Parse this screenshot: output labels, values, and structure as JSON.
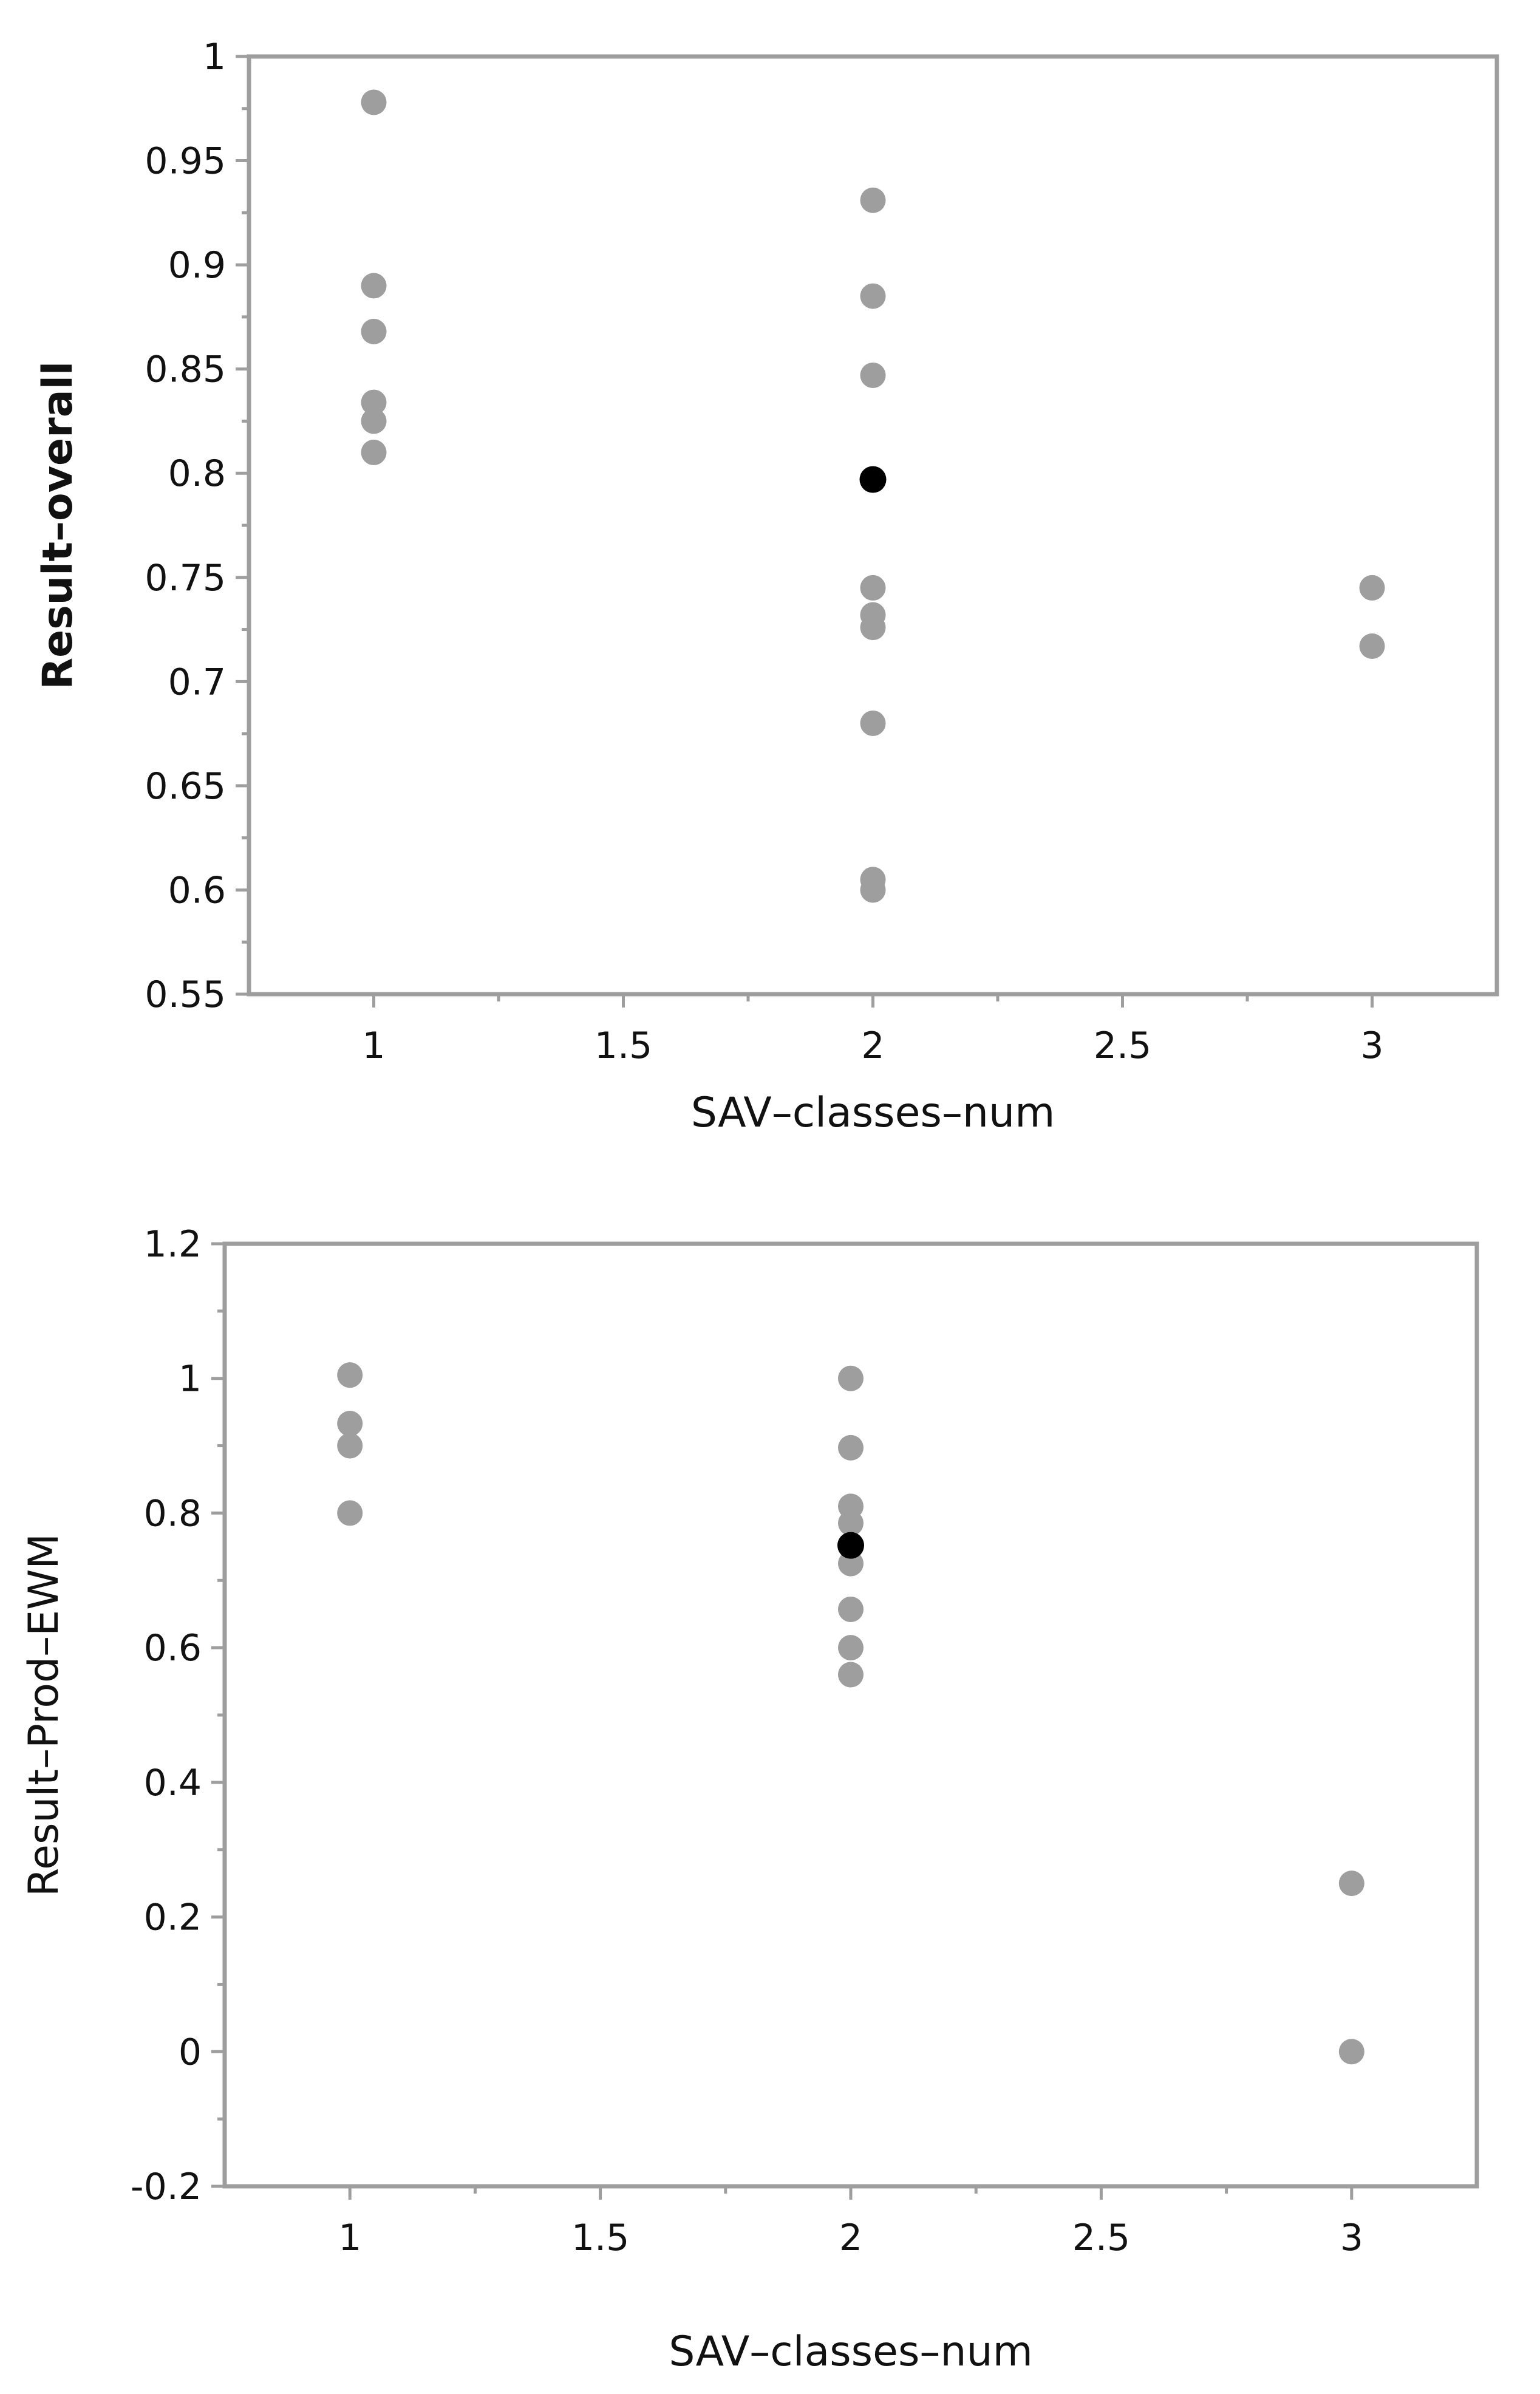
{
  "colors": {
    "frame": "#9e9e9e",
    "point": "#9e9e9e",
    "highlight": "#000000",
    "text": "#111111"
  },
  "chart_data": [
    {
      "type": "scatter",
      "xlabel": "SAV–classes–num",
      "ylabel": "Result–overall",
      "ylabel_bold": true,
      "xlim": [
        0.75,
        3.25
      ],
      "ylim": [
        0.55,
        1.0
      ],
      "xticks": [
        1,
        1.5,
        2,
        2.5,
        3
      ],
      "xtick_labels": [
        "1",
        "1.5",
        "2",
        "2.5",
        "3"
      ],
      "yticks": [
        0.55,
        0.6,
        0.65,
        0.7,
        0.75,
        0.8,
        0.85,
        0.9,
        0.95,
        1.0
      ],
      "ytick_labels": [
        "0.55",
        "0.6",
        "0.65",
        "0.7",
        "0.75",
        "0.8",
        "0.85",
        "0.9",
        "0.95",
        "1"
      ],
      "points": [
        {
          "x": 1,
          "y": 0.978
        },
        {
          "x": 1,
          "y": 0.89
        },
        {
          "x": 1,
          "y": 0.868
        },
        {
          "x": 1,
          "y": 0.834
        },
        {
          "x": 1,
          "y": 0.825
        },
        {
          "x": 1,
          "y": 0.81
        },
        {
          "x": 2,
          "y": 0.931
        },
        {
          "x": 2,
          "y": 0.885
        },
        {
          "x": 2,
          "y": 0.847
        },
        {
          "x": 2,
          "y": 0.745
        },
        {
          "x": 2,
          "y": 0.732
        },
        {
          "x": 2,
          "y": 0.726
        },
        {
          "x": 2,
          "y": 0.68
        },
        {
          "x": 2,
          "y": 0.605
        },
        {
          "x": 2,
          "y": 0.6
        },
        {
          "x": 3,
          "y": 0.745
        },
        {
          "x": 3,
          "y": 0.717
        }
      ],
      "highlighted": [
        {
          "x": 2,
          "y": 0.797
        }
      ]
    },
    {
      "type": "scatter",
      "xlabel": "SAV–classes–num",
      "ylabel": "Result–Prod–EWM",
      "ylabel_bold": false,
      "xlim": [
        0.75,
        3.25
      ],
      "ylim": [
        -0.2,
        1.2
      ],
      "xticks": [
        1,
        1.5,
        2,
        2.5,
        3
      ],
      "xtick_labels": [
        "1",
        "1.5",
        "2",
        "2.5",
        "3"
      ],
      "yticks": [
        -0.2,
        0,
        0.2,
        0.4,
        0.6,
        0.8,
        1.0,
        1.2
      ],
      "ytick_labels": [
        "-0.2",
        "0",
        "0.2",
        "0.4",
        "0.6",
        "0.8",
        "1",
        "1.2"
      ],
      "points": [
        {
          "x": 1,
          "y": 1.005
        },
        {
          "x": 1,
          "y": 0.933
        },
        {
          "x": 1,
          "y": 0.9
        },
        {
          "x": 1,
          "y": 0.8
        },
        {
          "x": 2,
          "y": 1.0
        },
        {
          "x": 2,
          "y": 0.897
        },
        {
          "x": 2,
          "y": 0.81
        },
        {
          "x": 2,
          "y": 0.785
        },
        {
          "x": 2,
          "y": 0.725
        },
        {
          "x": 2,
          "y": 0.657
        },
        {
          "x": 2,
          "y": 0.6
        },
        {
          "x": 2,
          "y": 0.56
        },
        {
          "x": 3,
          "y": 0.25
        },
        {
          "x": 3,
          "y": 0.0
        }
      ],
      "highlighted": [
        {
          "x": 2,
          "y": 0.752
        }
      ]
    }
  ]
}
